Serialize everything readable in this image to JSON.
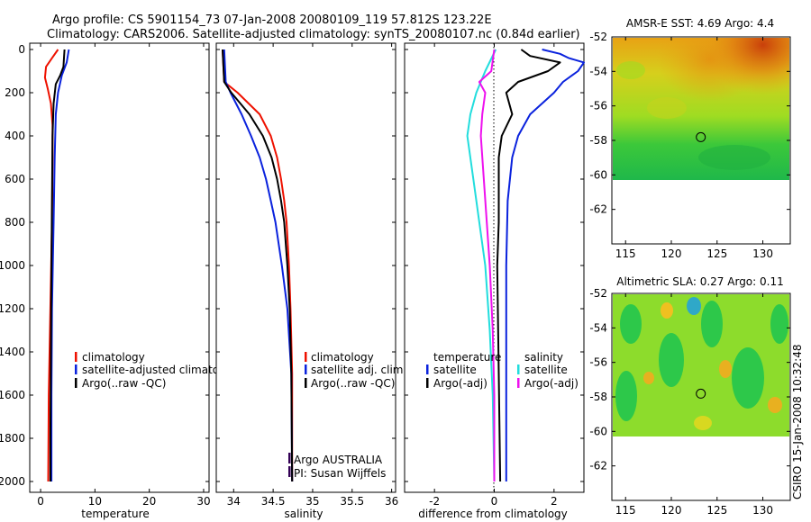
{
  "header": {
    "line1": "Argo profile: CS 5901154_73 07-Jan-2008 20080109_119 57.812S 123.22E",
    "line2": "Climatology: CARS2006. Satellite-adjusted climatology: synTS_20080107.nc (0.84d earlier)"
  },
  "colors": {
    "climatology": "#ee1100",
    "satellite": "#0a22dd",
    "argo": "#000000",
    "argo_salinity_diff": "#ee11ee",
    "satellite_salinity_diff": "#22dddd"
  },
  "chart_data": [
    {
      "id": "temperature",
      "type": "line",
      "xlabel": "temperature",
      "xlim": [
        -2,
        31
      ],
      "ylim": [
        0,
        2050
      ],
      "xticks": [
        0,
        10,
        20,
        30
      ],
      "xtick_labels": [
        "0",
        "10",
        "20",
        "30"
      ],
      "yticks": [
        0,
        200,
        400,
        600,
        800,
        1000,
        1200,
        1400,
        1600,
        1800,
        2000
      ],
      "ytick_labels": [
        "0",
        "200",
        "400",
        "600",
        "800",
        "1000",
        "1200",
        "1400",
        "1600",
        "1800",
        "2000"
      ],
      "series": [
        {
          "name": "climatology",
          "color_key": "climatology",
          "depth": [
            0,
            40,
            80,
            130,
            180,
            250,
            350,
            500,
            800,
            1200,
            1600,
            2000
          ],
          "values": [
            3.2,
            2.1,
            1.0,
            0.8,
            1.3,
            1.9,
            2.2,
            2.2,
            2.1,
            1.8,
            1.5,
            1.4
          ]
        },
        {
          "name": "satellite-adjusted climatology",
          "color_key": "satellite",
          "depth": [
            0,
            60,
            120,
            200,
            300,
            500,
            800,
            1200,
            1600,
            2000
          ],
          "values": [
            5.2,
            4.8,
            3.9,
            3.2,
            2.8,
            2.6,
            2.4,
            2.1,
            2.0,
            2.0
          ]
        },
        {
          "name": "Argo(..raw -QC)",
          "color_key": "argo",
          "depth": [
            0,
            80,
            120,
            160,
            250,
            400,
            700,
            1000,
            1400,
            1800,
            2000
          ],
          "values": [
            4.4,
            4.2,
            3.6,
            2.8,
            2.4,
            2.2,
            2.1,
            2.0,
            1.9,
            1.8,
            1.8
          ]
        }
      ],
      "legend": [
        "climatology",
        "satellite-adjusted climatology",
        "Argo(..raw -QC)"
      ]
    },
    {
      "id": "salinity",
      "type": "line",
      "xlabel": "salinity",
      "xlim": [
        33.78,
        36.05
      ],
      "ylim": [
        0,
        2050
      ],
      "xticks": [
        34,
        34.5,
        35,
        35.5,
        36
      ],
      "xtick_labels": [
        "34",
        "34.5",
        "35",
        "35.5",
        "36"
      ],
      "series": [
        {
          "name": "climatology",
          "color_key": "climatology",
          "depth": [
            0,
            150,
            200,
            300,
            400,
            500,
            600,
            700,
            800,
            1000,
            1200,
            1500,
            2000
          ],
          "values": [
            33.86,
            33.88,
            34.05,
            34.33,
            34.47,
            34.55,
            34.6,
            34.64,
            34.67,
            34.7,
            34.72,
            34.74,
            34.74
          ]
        },
        {
          "name": "satellite adj. clim.",
          "color_key": "satellite",
          "depth": [
            0,
            150,
            200,
            300,
            400,
            500,
            600,
            700,
            800,
            1000,
            1200,
            1500,
            2000
          ],
          "values": [
            33.88,
            33.9,
            33.96,
            34.1,
            34.22,
            34.33,
            34.41,
            34.47,
            34.53,
            34.61,
            34.68,
            34.73,
            34.74
          ]
        },
        {
          "name": "Argo(..raw -QC)",
          "color_key": "argo",
          "depth": [
            0,
            150,
            200,
            300,
            400,
            500,
            600,
            700,
            800,
            1000,
            1200,
            1500,
            2000
          ],
          "values": [
            33.86,
            33.88,
            33.97,
            34.2,
            34.37,
            34.48,
            34.55,
            34.6,
            34.64,
            34.68,
            34.71,
            34.73,
            34.74
          ]
        }
      ],
      "legend": [
        "climatology",
        "satellite adj. clim.",
        "Argo(..raw -QC)"
      ],
      "annotation": [
        "Argo AUSTRALIA",
        "PI: Susan Wijffels"
      ]
    },
    {
      "id": "difference",
      "type": "line",
      "xlabel": "difference from climatology",
      "xlim": [
        -3,
        3
      ],
      "ylim": [
        0,
        2050
      ],
      "xticks": [
        -2,
        0,
        2
      ],
      "xtick_labels": [
        "-2",
        "0",
        "2"
      ],
      "series": [
        {
          "name": "temperature satellite",
          "color_key": "satellite",
          "depth": [
            0,
            20,
            40,
            60,
            100,
            150,
            200,
            300,
            400,
            500,
            700,
            1000,
            1500,
            2000
          ],
          "values": [
            1.6,
            2.2,
            2.5,
            3.0,
            2.8,
            2.3,
            2.0,
            1.2,
            0.8,
            0.6,
            0.45,
            0.4,
            0.4,
            0.4
          ]
        },
        {
          "name": "temperature Argo(-adj)",
          "color_key": "argo",
          "depth": [
            0,
            30,
            60,
            100,
            150,
            200,
            300,
            400,
            500,
            600,
            800,
            1000,
            1500,
            2000
          ],
          "values": [
            0.9,
            1.2,
            2.2,
            1.8,
            0.8,
            0.4,
            0.6,
            0.25,
            0.15,
            0.15,
            0.15,
            0.1,
            0.15,
            0.2
          ]
        },
        {
          "name": "salinity satellite",
          "color_key": "satellite_salinity_diff",
          "depth": [
            0,
            100,
            200,
            300,
            400,
            600,
            800,
            1000,
            1300,
            1600,
            2000
          ],
          "values": [
            0.05,
            -0.3,
            -0.6,
            -0.8,
            -0.9,
            -0.7,
            -0.5,
            -0.3,
            -0.15,
            -0.05,
            0.0
          ]
        },
        {
          "name": "salinity Argo(-adj)",
          "color_key": "argo_salinity_diff",
          "depth": [
            0,
            100,
            150,
            200,
            300,
            400,
            600,
            800,
            1000,
            1300,
            1600,
            2000
          ],
          "values": [
            0.0,
            -0.1,
            -0.5,
            -0.3,
            -0.4,
            -0.45,
            -0.35,
            -0.25,
            -0.15,
            -0.05,
            0.0,
            0.0
          ]
        }
      ],
      "legend_groups": [
        {
          "title": "temperature",
          "items": [
            {
              "label": "satellite",
              "color_key": "satellite"
            },
            {
              "label": "Argo(-adj)",
              "color_key": "argo"
            }
          ]
        },
        {
          "title": "salinity",
          "items": [
            {
              "label": "satellite",
              "color_key": "satellite_salinity_diff"
            },
            {
              "label": "Argo(-adj)",
              "color_key": "argo_salinity_diff"
            }
          ]
        }
      ]
    },
    {
      "id": "sst_map",
      "type": "heatmap",
      "title": "AMSR-E SST: 4.69 Argo: 4.4",
      "xlim": [
        113.5,
        133
      ],
      "ylim": [
        -64,
        -52
      ],
      "data_ylim": [
        -60,
        -52
      ],
      "xticks": [
        115,
        120,
        125,
        130
      ],
      "xtick_labels": [
        "115",
        "120",
        "125",
        "130"
      ],
      "yticks": [
        -52,
        -54,
        -56,
        -58,
        -60,
        -62
      ],
      "ytick_labels": [
        "-52",
        "-54",
        "-56",
        "-58",
        "-60",
        "-62"
      ],
      "marker": {
        "lon": 123.22,
        "lat": -57.812
      }
    },
    {
      "id": "sla_map",
      "type": "heatmap",
      "title": "Altimetric SLA: 0.27 Argo: 0.11",
      "xlim": [
        113.5,
        133
      ],
      "ylim": [
        -64,
        -52
      ],
      "data_ylim": [
        -60,
        -52
      ],
      "xticks": [
        115,
        120,
        125,
        130
      ],
      "xtick_labels": [
        "115",
        "120",
        "125",
        "130"
      ],
      "yticks": [
        -52,
        -54,
        -56,
        -58,
        -60,
        -62
      ],
      "ytick_labels": [
        "-52",
        "-54",
        "-56",
        "-58",
        "-60",
        "-62"
      ],
      "marker": {
        "lon": 123.22,
        "lat": -57.812
      }
    }
  ],
  "credit": "CSIRO 15-Jan-2008 10:32:48"
}
